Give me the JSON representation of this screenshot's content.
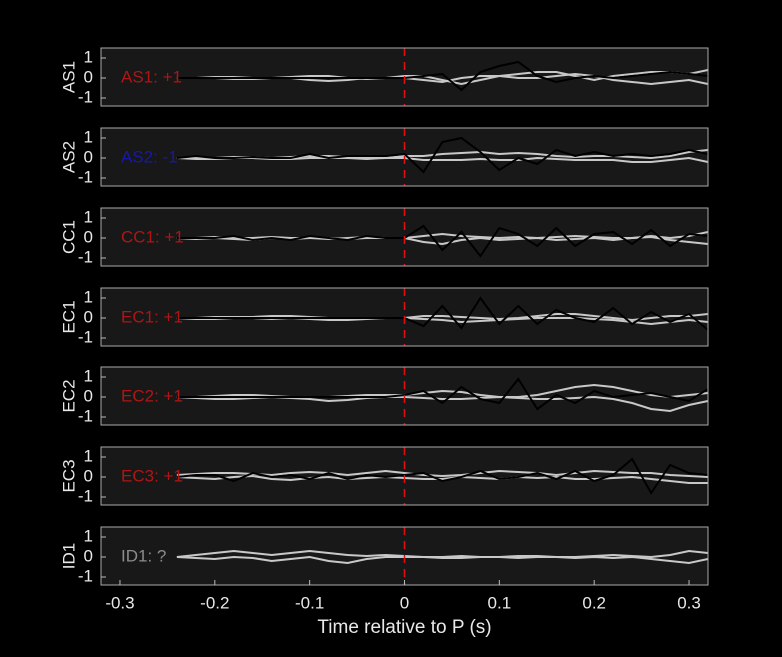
{
  "chart_data": [
    {
      "type": "line",
      "ylabel": "AS1",
      "annotation": {
        "text": "AS1: +1",
        "color": "#b01515"
      },
      "x": [
        -0.24,
        -0.22,
        -0.2,
        -0.18,
        -0.16,
        -0.14,
        -0.12,
        -0.1,
        -0.08,
        -0.06,
        -0.04,
        -0.02,
        0,
        0.02,
        0.04,
        0.06,
        0.08,
        0.1,
        0.12,
        0.14,
        0.16,
        0.18,
        0.2,
        0.22,
        0.24,
        0.26,
        0.28,
        0.3,
        0.32
      ],
      "series": [
        {
          "color": "#c8c8c8",
          "values": [
            0,
            0,
            0.05,
            0.05,
            0,
            0,
            0.05,
            0.1,
            0.1,
            0,
            -0.05,
            0,
            0.1,
            0.1,
            -0.1,
            -0.3,
            -0.1,
            0.1,
            0.2,
            0.3,
            0.3,
            0.1,
            -0.1,
            0.1,
            0.2,
            0.3,
            0.3,
            0.2,
            0.4
          ]
        },
        {
          "color": "#c8c8c8",
          "values": [
            0,
            0,
            0,
            -0.05,
            -0.05,
            0,
            0,
            -0.1,
            -0.15,
            -0.1,
            0,
            0,
            0,
            -0.1,
            -0.2,
            0,
            0.1,
            0.1,
            0,
            0,
            0.1,
            0.2,
            0.1,
            -0.1,
            -0.2,
            -0.3,
            -0.2,
            -0.1,
            -0.3
          ]
        },
        {
          "color": "#000000",
          "values": [
            0,
            0,
            0,
            0,
            0,
            0,
            0,
            0,
            0,
            0,
            0,
            0,
            0,
            0.1,
            0.2,
            -0.6,
            0.3,
            0.6,
            0.8,
            0.1,
            -0.2,
            0,
            0.1,
            0,
            0.1,
            0.2,
            0.3,
            0.2,
            0.1
          ]
        }
      ],
      "xlim": [
        -0.32,
        0.32
      ],
      "ylim": [
        -1.4,
        1.5
      ],
      "yticks": [
        -1,
        0,
        1
      ],
      "vline": 0,
      "vline_color": "#e01010"
    },
    {
      "type": "line",
      "ylabel": "AS2",
      "annotation": {
        "text": "AS2: -1",
        "color": "#1818a8"
      },
      "x": [
        -0.24,
        -0.22,
        -0.2,
        -0.18,
        -0.16,
        -0.14,
        -0.12,
        -0.1,
        -0.08,
        -0.06,
        -0.04,
        -0.02,
        0,
        0.02,
        0.04,
        0.06,
        0.08,
        0.1,
        0.12,
        0.14,
        0.16,
        0.18,
        0.2,
        0.22,
        0.24,
        0.26,
        0.28,
        0.3,
        0.32
      ],
      "series": [
        {
          "color": "#c8c8c8",
          "values": [
            0,
            0,
            0,
            0.05,
            0.05,
            0,
            0.05,
            0.1,
            0.1,
            0.05,
            0,
            0,
            0.1,
            0.1,
            0.2,
            0.25,
            0.3,
            0.2,
            0.25,
            0.2,
            0.1,
            0.05,
            0.1,
            0.1,
            0.05,
            0,
            0.1,
            0.3,
            0.4
          ]
        },
        {
          "color": "#c8c8c8",
          "values": [
            0,
            -0.05,
            -0.05,
            0,
            0,
            -0.05,
            -0.05,
            0,
            0,
            0,
            -0.05,
            0,
            0,
            -0.1,
            -0.1,
            -0.1,
            -0.05,
            -0.1,
            -0.1,
            0,
            -0.05,
            -0.1,
            -0.1,
            -0.1,
            -0.2,
            -0.2,
            -0.1,
            0,
            -0.2
          ]
        },
        {
          "color": "#000000",
          "values": [
            0,
            0.1,
            0,
            0,
            0.05,
            0,
            0,
            0.2,
            0,
            0.1,
            0.1,
            0.1,
            0.2,
            -0.7,
            0.8,
            1,
            0.3,
            -0.6,
            0,
            -0.3,
            0.4,
            0.1,
            0.3,
            0.1,
            0.2,
            0.1,
            0.2,
            0.4,
            0.2
          ]
        }
      ],
      "xlim": [
        -0.32,
        0.32
      ],
      "ylim": [
        -1.4,
        1.5
      ],
      "yticks": [
        -1,
        0,
        1
      ],
      "vline": 0,
      "vline_color": "#e01010"
    },
    {
      "type": "line",
      "ylabel": "CC1",
      "annotation": {
        "text": "CC1: +1",
        "color": "#b01515"
      },
      "x": [
        -0.24,
        -0.22,
        -0.2,
        -0.18,
        -0.16,
        -0.14,
        -0.12,
        -0.1,
        -0.08,
        -0.06,
        -0.04,
        -0.02,
        0,
        0.02,
        0.04,
        0.06,
        0.08,
        0.1,
        0.12,
        0.14,
        0.16,
        0.18,
        0.2,
        0.22,
        0.24,
        0.26,
        0.28,
        0.3,
        0.32
      ],
      "series": [
        {
          "color": "#c8c8c8",
          "values": [
            0,
            0,
            0.05,
            0,
            0,
            0.05,
            0,
            0,
            -0.05,
            0,
            0.05,
            0,
            0,
            0.1,
            0.2,
            0.1,
            0.05,
            0,
            0.05,
            0,
            0.05,
            0.1,
            0.05,
            0,
            0,
            0.1,
            0,
            0.1,
            0.3
          ]
        },
        {
          "color": "#c8c8c8",
          "values": [
            0,
            -0.05,
            0,
            -0.05,
            -0.1,
            0,
            -0.05,
            0,
            0,
            -0.05,
            0,
            0,
            0,
            -0.2,
            -0.3,
            -0.1,
            0,
            -0.1,
            -0.05,
            0,
            -0.1,
            -0.05,
            0,
            -0.1,
            0,
            0.05,
            -0.1,
            -0.2,
            -0.3
          ]
        },
        {
          "color": "#000000",
          "values": [
            0,
            0,
            0,
            0.1,
            -0.1,
            0,
            -0.1,
            0.1,
            0,
            -0.1,
            0.1,
            0,
            0,
            0.6,
            -0.6,
            0.3,
            -0.9,
            0.5,
            0.2,
            -0.4,
            0.5,
            -0.4,
            0.2,
            0.3,
            -0.3,
            0.4,
            -0.4,
            0.2,
            0.1
          ]
        }
      ],
      "xlim": [
        -0.32,
        0.32
      ],
      "ylim": [
        -1.4,
        1.5
      ],
      "yticks": [
        -1,
        0,
        1
      ],
      "vline": 0,
      "vline_color": "#e01010"
    },
    {
      "type": "line",
      "ylabel": "EC1",
      "annotation": {
        "text": "EC1: +1",
        "color": "#b01515"
      },
      "x": [
        -0.24,
        -0.22,
        -0.2,
        -0.18,
        -0.16,
        -0.14,
        -0.12,
        -0.1,
        -0.08,
        -0.06,
        -0.04,
        -0.02,
        0,
        0.02,
        0.04,
        0.06,
        0.08,
        0.1,
        0.12,
        0.14,
        0.16,
        0.18,
        0.2,
        0.22,
        0.24,
        0.26,
        0.28,
        0.3,
        0.32
      ],
      "series": [
        {
          "color": "#c8c8c8",
          "values": [
            0,
            0,
            0.05,
            0.05,
            0.05,
            0.1,
            0.1,
            0.05,
            0,
            0,
            0,
            0,
            0,
            0.1,
            0.1,
            0.05,
            0,
            -0.05,
            0,
            0.1,
            0.2,
            0.2,
            0.1,
            0,
            -0.1,
            0,
            0.1,
            0.1,
            0.2
          ]
        },
        {
          "color": "#c8c8c8",
          "values": [
            0,
            -0.05,
            -0.05,
            0,
            0,
            -0.05,
            0,
            -0.05,
            -0.1,
            -0.1,
            -0.05,
            0,
            0,
            -0.05,
            -0.1,
            -0.2,
            -0.15,
            -0.1,
            -0.05,
            0,
            0,
            0,
            -0.05,
            -0.1,
            -0.2,
            -0.3,
            -0.2,
            -0.1,
            -0.2
          ]
        },
        {
          "color": "#000000",
          "values": [
            0,
            0,
            0,
            0,
            0,
            0,
            0,
            0,
            0,
            0,
            0,
            0,
            0,
            -0.4,
            0.6,
            -0.5,
            1,
            -0.3,
            0.6,
            -0.3,
            0.4,
            0,
            -0.2,
            0.5,
            -0.3,
            0.3,
            -0.2,
            0.2,
            -0.6
          ]
        }
      ],
      "xlim": [
        -0.32,
        0.32
      ],
      "ylim": [
        -1.4,
        1.5
      ],
      "yticks": [
        -1,
        0,
        1
      ],
      "vline": 0,
      "vline_color": "#e01010"
    },
    {
      "type": "line",
      "ylabel": "EC2",
      "annotation": {
        "text": "EC2: +1",
        "color": "#b01515"
      },
      "x": [
        -0.24,
        -0.22,
        -0.2,
        -0.18,
        -0.16,
        -0.14,
        -0.12,
        -0.1,
        -0.08,
        -0.06,
        -0.04,
        -0.02,
        0,
        0.02,
        0.04,
        0.06,
        0.08,
        0.1,
        0.12,
        0.14,
        0.16,
        0.18,
        0.2,
        0.22,
        0.24,
        0.26,
        0.28,
        0.3,
        0.32
      ],
      "series": [
        {
          "color": "#c8c8c8",
          "values": [
            0,
            0,
            0.05,
            0.1,
            0.1,
            0.05,
            0,
            0,
            0,
            0.05,
            0.1,
            0.1,
            0.1,
            0.2,
            0.3,
            0.25,
            0.1,
            0,
            0,
            0.1,
            0.3,
            0.5,
            0.6,
            0.5,
            0.3,
            0.1,
            0,
            0.1,
            0.2
          ]
        },
        {
          "color": "#c8c8c8",
          "values": [
            0,
            -0.05,
            -0.1,
            -0.1,
            -0.05,
            0,
            -0.05,
            -0.1,
            -0.2,
            -0.15,
            -0.05,
            0,
            0,
            -0.05,
            -0.1,
            -0.1,
            -0.05,
            0,
            -0.05,
            -0.1,
            -0.1,
            -0.05,
            0,
            -0.1,
            -0.3,
            -0.6,
            -0.7,
            -0.4,
            -0.2
          ]
        },
        {
          "color": "#000000",
          "values": [
            0,
            0,
            0,
            0,
            0,
            0,
            0,
            0,
            0,
            0,
            0,
            0,
            0.1,
            0.3,
            -0.3,
            0.5,
            -0.1,
            -0.3,
            0.9,
            -0.6,
            0.1,
            -0.3,
            0.3,
            0,
            0.1,
            0.2,
            0,
            -0.2,
            0.4
          ]
        }
      ],
      "xlim": [
        -0.32,
        0.32
      ],
      "ylim": [
        -1.4,
        1.5
      ],
      "yticks": [
        -1,
        0,
        1
      ],
      "vline": 0,
      "vline_color": "#e01010"
    },
    {
      "type": "line",
      "ylabel": "EC3",
      "annotation": {
        "text": "EC3: +1",
        "color": "#b01515"
      },
      "x": [
        -0.24,
        -0.22,
        -0.2,
        -0.18,
        -0.16,
        -0.14,
        -0.12,
        -0.1,
        -0.08,
        -0.06,
        -0.04,
        -0.02,
        0,
        0.02,
        0.04,
        0.06,
        0.08,
        0.1,
        0.12,
        0.14,
        0.16,
        0.18,
        0.2,
        0.22,
        0.24,
        0.26,
        0.28,
        0.3,
        0.32
      ],
      "series": [
        {
          "color": "#c8c8c8",
          "values": [
            0.1,
            0.15,
            0.2,
            0.2,
            0.15,
            0.1,
            0.2,
            0.25,
            0.2,
            0.1,
            0.2,
            0.3,
            0.2,
            0.1,
            0.05,
            0.1,
            0.2,
            0.3,
            0.25,
            0.2,
            0.1,
            0.2,
            0.3,
            0.25,
            0.2,
            0.2,
            0.1,
            0.05,
            0
          ]
        },
        {
          "color": "#c8c8c8",
          "values": [
            0,
            -0.05,
            -0.1,
            0,
            0.05,
            -0.1,
            -0.15,
            -0.05,
            0,
            -0.1,
            -0.05,
            0,
            -0.05,
            -0.1,
            -0.1,
            0,
            -0.05,
            -0.1,
            0,
            -0.05,
            0,
            -0.1,
            -0.1,
            -0.05,
            0,
            -0.1,
            -0.2,
            -0.3,
            -0.3
          ]
        },
        {
          "color": "#000000",
          "values": [
            0,
            0.1,
            0.1,
            -0.2,
            0.2,
            0,
            0.1,
            -0.1,
            0.2,
            -0.1,
            0.1,
            0,
            0.1,
            0.2,
            -0.2,
            0,
            0.3,
            -0.1,
            0,
            0.2,
            -0.1,
            0.3,
            -0.2,
            0.1,
            0.9,
            -0.8,
            0.6,
            0.2,
            0.1
          ]
        }
      ],
      "xlim": [
        -0.32,
        0.32
      ],
      "ylim": [
        -1.4,
        1.5
      ],
      "yticks": [
        -1,
        0,
        1
      ],
      "vline": 0,
      "vline_color": "#e01010"
    },
    {
      "type": "line",
      "ylabel": "ID1",
      "annotation": {
        "text": "ID1: ?",
        "color": "#8c8c8c"
      },
      "x": [
        -0.24,
        -0.22,
        -0.2,
        -0.18,
        -0.16,
        -0.14,
        -0.12,
        -0.1,
        -0.08,
        -0.06,
        -0.04,
        -0.02,
        0,
        0.02,
        0.04,
        0.06,
        0.08,
        0.1,
        0.12,
        0.14,
        0.16,
        0.18,
        0.2,
        0.22,
        0.24,
        0.26,
        0.28,
        0.3,
        0.32
      ],
      "series": [
        {
          "color": "#c8c8c8",
          "values": [
            0,
            0.1,
            0.2,
            0.3,
            0.2,
            0.1,
            0.2,
            0.3,
            0.2,
            0.1,
            0.05,
            0.1,
            0.05,
            0,
            0,
            0.05,
            0,
            0,
            0.05,
            0.05,
            0,
            0,
            0.05,
            0.1,
            0.05,
            0,
            0.1,
            0.3,
            0.2
          ]
        },
        {
          "color": "#c8c8c8",
          "values": [
            0,
            -0.05,
            -0.1,
            0,
            -0.05,
            -0.2,
            -0.1,
            0,
            -0.2,
            -0.3,
            -0.1,
            0,
            0,
            0,
            -0.05,
            -0.05,
            0,
            0,
            -0.05,
            0,
            0,
            -0.05,
            0,
            -0.05,
            0,
            -0.1,
            -0.2,
            -0.3,
            -0.1
          ]
        }
      ],
      "xlim": [
        -0.32,
        0.32
      ],
      "ylim": [
        -1.4,
        1.5
      ],
      "yticks": [
        -1,
        0,
        1
      ],
      "vline": 0,
      "vline_color": "#e01010",
      "xticks": [
        -0.3,
        -0.2,
        -0.1,
        0,
        0.1,
        0.2,
        0.3
      ],
      "xlabel": "Time relative to P (s)"
    }
  ]
}
